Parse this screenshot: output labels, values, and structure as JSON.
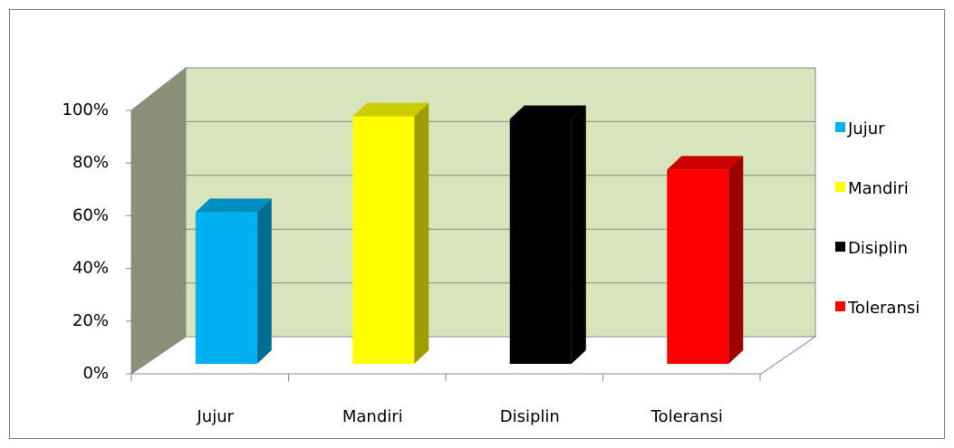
{
  "chart_data": {
    "type": "bar3d",
    "categories": [
      "Jujur",
      "Mandiri",
      "Disiplin",
      "Toleransi"
    ],
    "values": [
      57,
      93,
      92,
      73
    ],
    "colors": [
      "#00b0f0",
      "#ffff00",
      "#000000",
      "#ff0000"
    ],
    "ylim": [
      0,
      100
    ],
    "yticks": [
      {
        "value": 0,
        "label": "0%"
      },
      {
        "value": 20,
        "label": "20%"
      },
      {
        "value": 40,
        "label": "40%"
      },
      {
        "value": 60,
        "label": "60%"
      },
      {
        "value": 80,
        "label": "80%"
      },
      {
        "value": 100,
        "label": "100%"
      }
    ],
    "grid": true,
    "legend": "right"
  }
}
